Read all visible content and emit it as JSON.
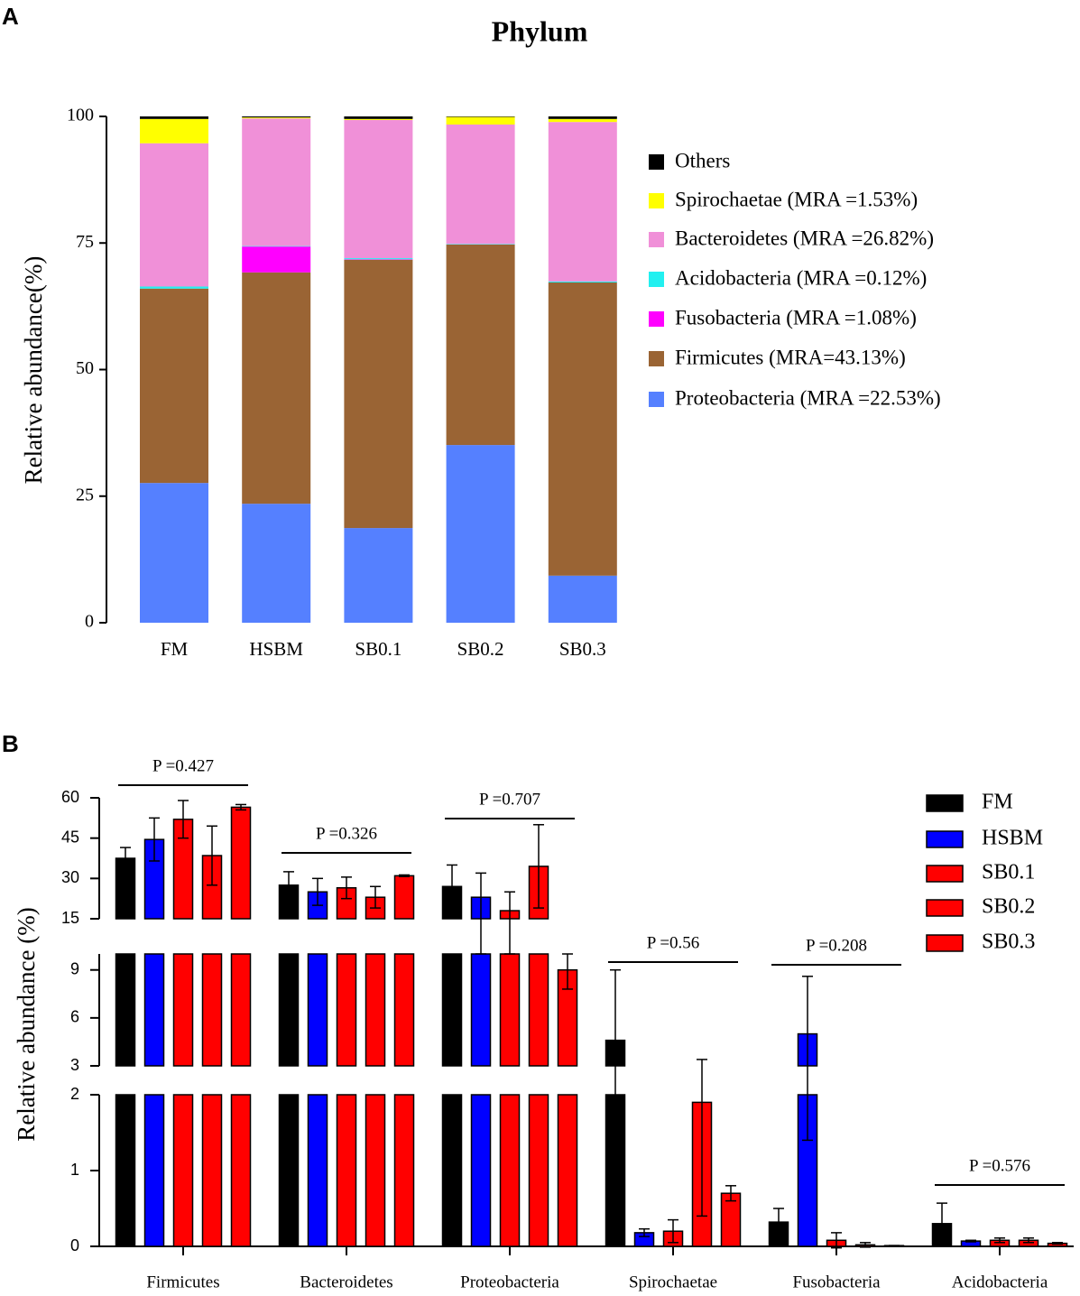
{
  "chart_data": [
    {
      "type": "stacked-bar",
      "panel": "A",
      "title": "Phylum",
      "y_label": "Relative abundance(%)",
      "categories": [
        "FM",
        "HSBM",
        "SB0.1",
        "SB0.2",
        "SB0.3"
      ],
      "ylim": [
        0,
        100
      ],
      "yticks": [
        0,
        25,
        50,
        75,
        100
      ],
      "series": [
        {
          "name": "Proteobacteria (MRA =22.53%)",
          "color": "#5580ff",
          "values": [
            27.6,
            23.5,
            18.7,
            35.1,
            9.3
          ]
        },
        {
          "name": "Firmicutes (MRA=43.13%)",
          "color": "#9a6434",
          "values": [
            38.4,
            45.7,
            53.0,
            39.6,
            57.9
          ]
        },
        {
          "name": "Fusobacteria (MRA =1.08%)",
          "color": "#ff00ff",
          "values": [
            0.0,
            5.1,
            0.1,
            0.0,
            0.0
          ]
        },
        {
          "name": "Acidobacteria (MRA =0.12%)",
          "color": "#22f0f0",
          "values": [
            0.4,
            0.1,
            0.2,
            0.1,
            0.2
          ]
        },
        {
          "name": "Bacteroidetes (MRA =26.82%)",
          "color": "#f090d8",
          "values": [
            28.3,
            25.2,
            27.3,
            23.6,
            31.5
          ]
        },
        {
          "name": "Spirochaetae (MRA =1.53%)",
          "color": "#ffff00",
          "values": [
            4.8,
            0.2,
            0.2,
            1.5,
            0.6
          ]
        },
        {
          "name": "Others",
          "color": "#000000",
          "values": [
            0.5,
            0.2,
            0.5,
            0.1,
            0.5
          ]
        }
      ]
    },
    {
      "type": "broken-bar",
      "panel": "B",
      "y_label": "Relative abundance (%)",
      "categories": [
        "Firmicutes",
        "Bacteroidetes",
        "Proteobacteria",
        "Spirochaetae",
        "Fusobacteria",
        "Acidobacteria"
      ],
      "p_values": [
        "P =0.427",
        "P =0.326",
        "P =0.707",
        "P =0.56",
        "P =0.208",
        "P =0.576"
      ],
      "segments": [
        {
          "ylim": [
            0,
            2
          ],
          "yticks": [
            0,
            1,
            2
          ]
        },
        {
          "ylim": [
            3,
            10
          ],
          "yticks": [
            3,
            6,
            9
          ]
        },
        {
          "ylim": [
            15,
            60
          ],
          "yticks": [
            15,
            30,
            45,
            60
          ]
        }
      ],
      "series": [
        {
          "name": "FM",
          "color": "#000000",
          "values": [
            37.5,
            27.5,
            27,
            4.6,
            0.32,
            0.3
          ],
          "errors": [
            4,
            5,
            8,
            4.4,
            0.18,
            0.27
          ]
        },
        {
          "name": "HSBM",
          "color": "#0000ff",
          "values": [
            44.5,
            25,
            23,
            0.18,
            5.0,
            0.07
          ],
          "errors": [
            8,
            5,
            9,
            0.05,
            3.6,
            0.01
          ]
        },
        {
          "name": "SB0.1",
          "color": "#ff0000",
          "values": [
            52,
            26.5,
            18,
            0.2,
            0.08,
            0.08
          ],
          "errors": [
            7,
            4,
            7,
            0.15,
            0.1,
            0.03
          ]
        },
        {
          "name": "SB0.2",
          "color": "#ff0000",
          "values": [
            38.5,
            23,
            34.5,
            1.9,
            0.02,
            0.08
          ],
          "errors": [
            11,
            4,
            15.5,
            1.5,
            0.03,
            0.03
          ]
        },
        {
          "name": "SB0.3",
          "color": "#ff0000",
          "values": [
            56.5,
            31,
            9,
            0.7,
            0.01,
            0.04
          ],
          "errors": [
            1,
            0.3,
            1.2,
            0.1,
            0,
            0.01
          ]
        }
      ]
    }
  ]
}
